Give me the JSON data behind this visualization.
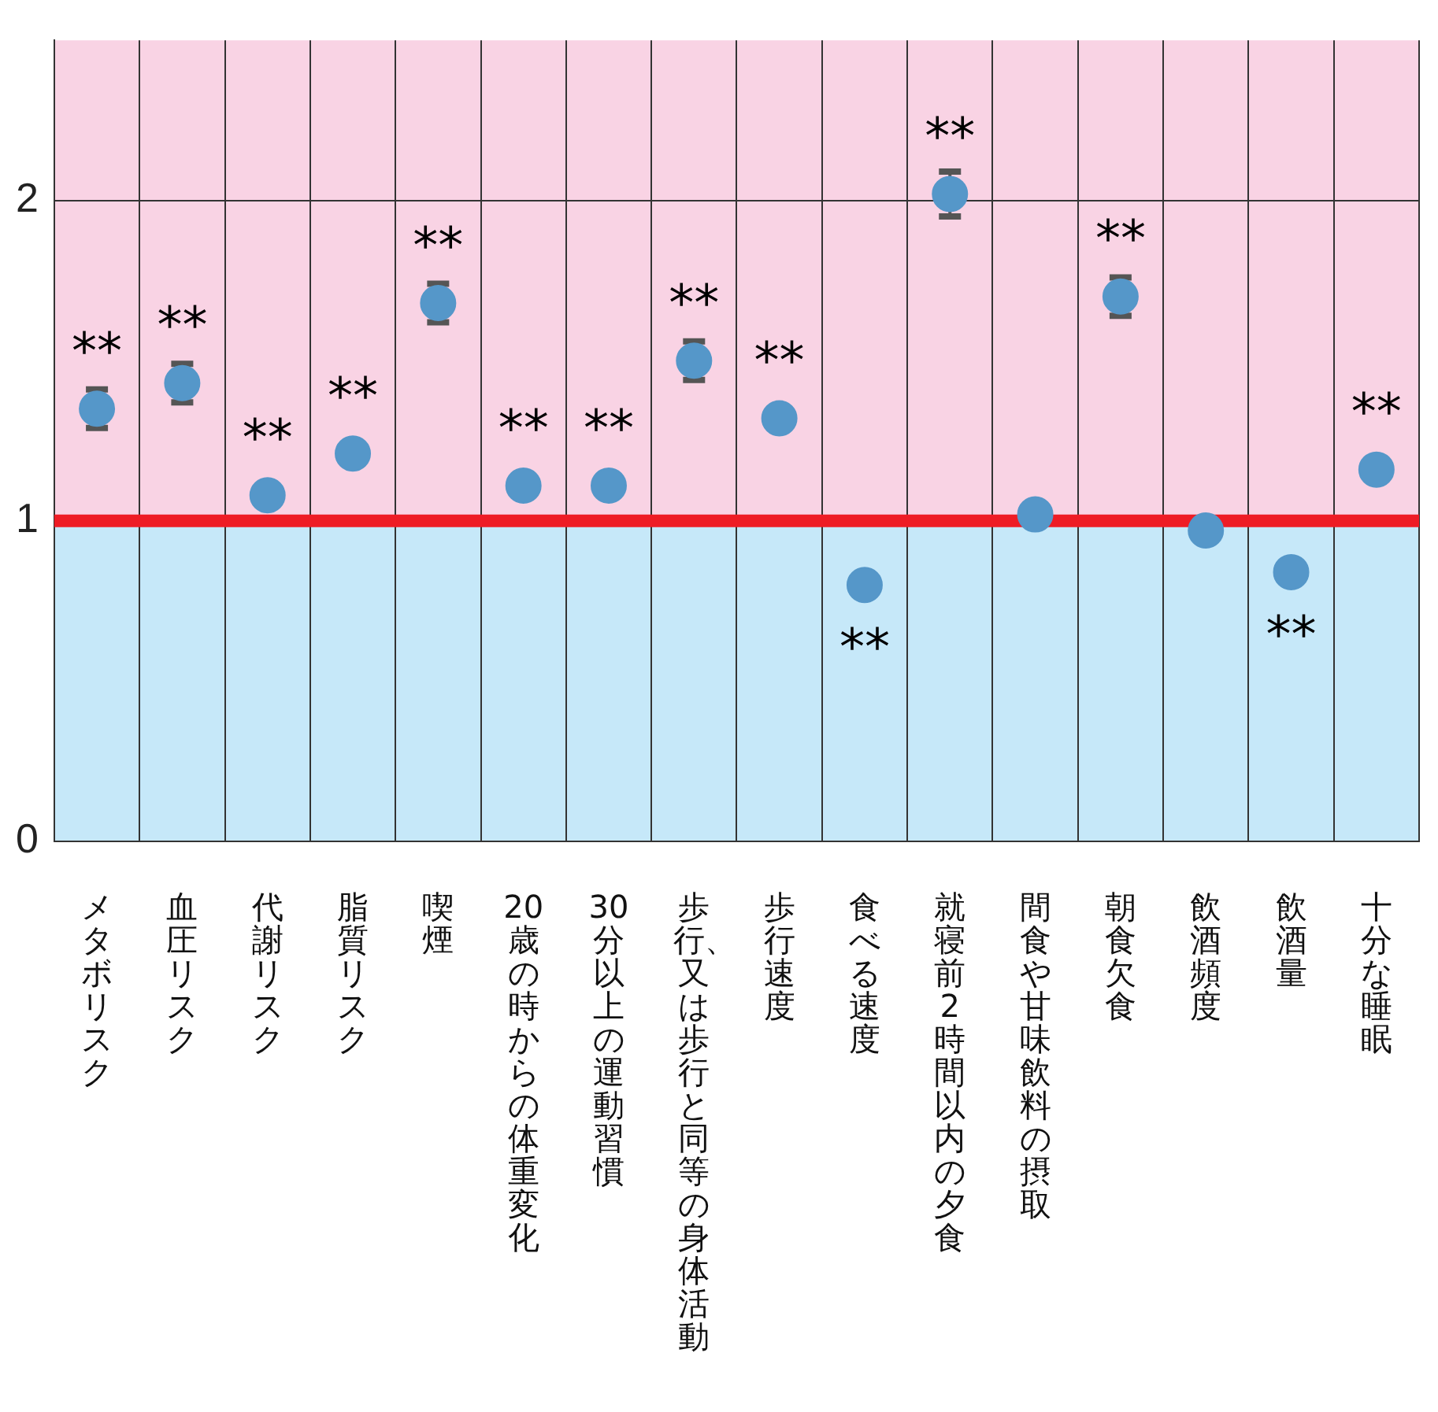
{
  "chart_data": {
    "type": "scatter",
    "categories": [
      "メタボリスク",
      "血圧リスク",
      "代謝リスク",
      "脂質リスク",
      "喫煙",
      "20歳の時からの体重変化",
      "30分以上の運動習慣",
      "歩行、又は歩行と同等の身体活動",
      "歩行速度",
      "食べる速度",
      "就寝前2時間以内の夕食",
      "間食や甘味飲料の摂取",
      "朝食欠食",
      "飲酒頻度",
      "飲酒量",
      "十分な睡眠"
    ],
    "series": [
      {
        "color": "#5597c9",
        "values": [
          1.35,
          1.43,
          1.08,
          1.21,
          1.68,
          1.11,
          1.11,
          1.5,
          1.32,
          0.8,
          2.02,
          1.02,
          1.7,
          0.97,
          0.84,
          1.16
        ],
        "errors": [
          0.06,
          0.06,
          null,
          null,
          0.06,
          null,
          null,
          0.06,
          null,
          null,
          0.07,
          null,
          0.06,
          null,
          null,
          null
        ]
      }
    ],
    "marker": "circle",
    "ylim": [
      0,
      2.5
    ],
    "yticks": [
      0,
      1,
      2
    ],
    "grid": true,
    "ref_lines": [
      {
        "axis": "y",
        "value": 1,
        "color": "#ee1c25"
      }
    ],
    "bands": [
      {
        "axis": "y",
        "from": 1,
        "to": 2.5,
        "color": "#f9d3e4"
      },
      {
        "axis": "y",
        "from": 0,
        "to": 1,
        "color": "#c6e8f9"
      }
    ],
    "annotations": [
      {
        "text": "**",
        "x": "メタボリスク",
        "y": 1.35
      },
      {
        "text": "**",
        "x": "血圧リスク",
        "y": 1.43
      },
      {
        "text": "**",
        "x": "代謝リスク",
        "y": 1.08
      },
      {
        "text": "**",
        "x": "脂質リスク",
        "y": 1.21
      },
      {
        "text": "**",
        "x": "喫煙",
        "y": 1.68
      },
      {
        "text": "**",
        "x": "20歳の時からの体重変化",
        "y": 1.11
      },
      {
        "text": "**",
        "x": "30分以上の運動習慣",
        "y": 1.11
      },
      {
        "text": "**",
        "x": "歩行、又は歩行と同等の身体活動",
        "y": 1.5
      },
      {
        "text": "**",
        "x": "歩行速度",
        "y": 1.32
      },
      {
        "text": "**",
        "x": "食べる速度",
        "y": 0.8
      },
      {
        "text": "**",
        "x": "就寝前2時間以内の夕食",
        "y": 2.02
      },
      {
        "text": "**",
        "x": "朝食欠食",
        "y": 1.7
      },
      {
        "text": "**",
        "x": "飲酒量",
        "y": 0.84
      },
      {
        "text": "**",
        "x": "十分な睡眠",
        "y": 1.16
      }
    ]
  }
}
